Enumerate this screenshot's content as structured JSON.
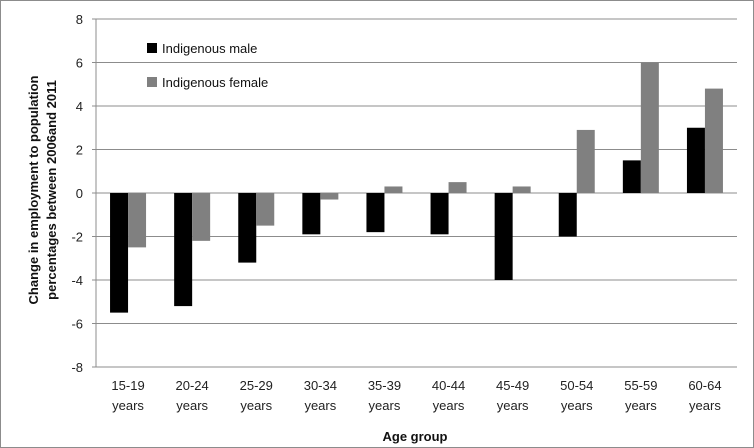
{
  "chart_data": {
    "type": "bar",
    "ylabel_line1": "Change in employment to population",
    "ylabel_line2": "percentages between 2006and 2011",
    "xlabel": "Age group",
    "ylim": [
      -8,
      8
    ],
    "yticks": [
      "8",
      "6",
      "4",
      "2",
      "0",
      "-2",
      "-4",
      "-6",
      "-8"
    ],
    "categories": [
      [
        "15-19",
        "years"
      ],
      [
        "20-24",
        "years"
      ],
      [
        "25-29",
        "years"
      ],
      [
        "30-34",
        "years"
      ],
      [
        "35-39",
        "years"
      ],
      [
        "40-44",
        "years"
      ],
      [
        "45-49",
        "years"
      ],
      [
        "50-54",
        "years"
      ],
      [
        "55-59",
        "years"
      ],
      [
        "60-64",
        "years"
      ]
    ],
    "series": [
      {
        "name": "Indigenous male",
        "color": "#000000",
        "values": [
          -5.5,
          -5.2,
          -3.2,
          -1.9,
          -1.8,
          -1.9,
          -4.0,
          -2.0,
          1.5,
          3.0
        ]
      },
      {
        "name": "Indigenous female",
        "color": "#808080",
        "values": [
          -2.5,
          -2.2,
          -1.5,
          -0.3,
          0.3,
          0.5,
          0.3,
          2.9,
          6.0,
          4.8
        ]
      }
    ],
    "grid": true,
    "legend_position": "top-left"
  }
}
